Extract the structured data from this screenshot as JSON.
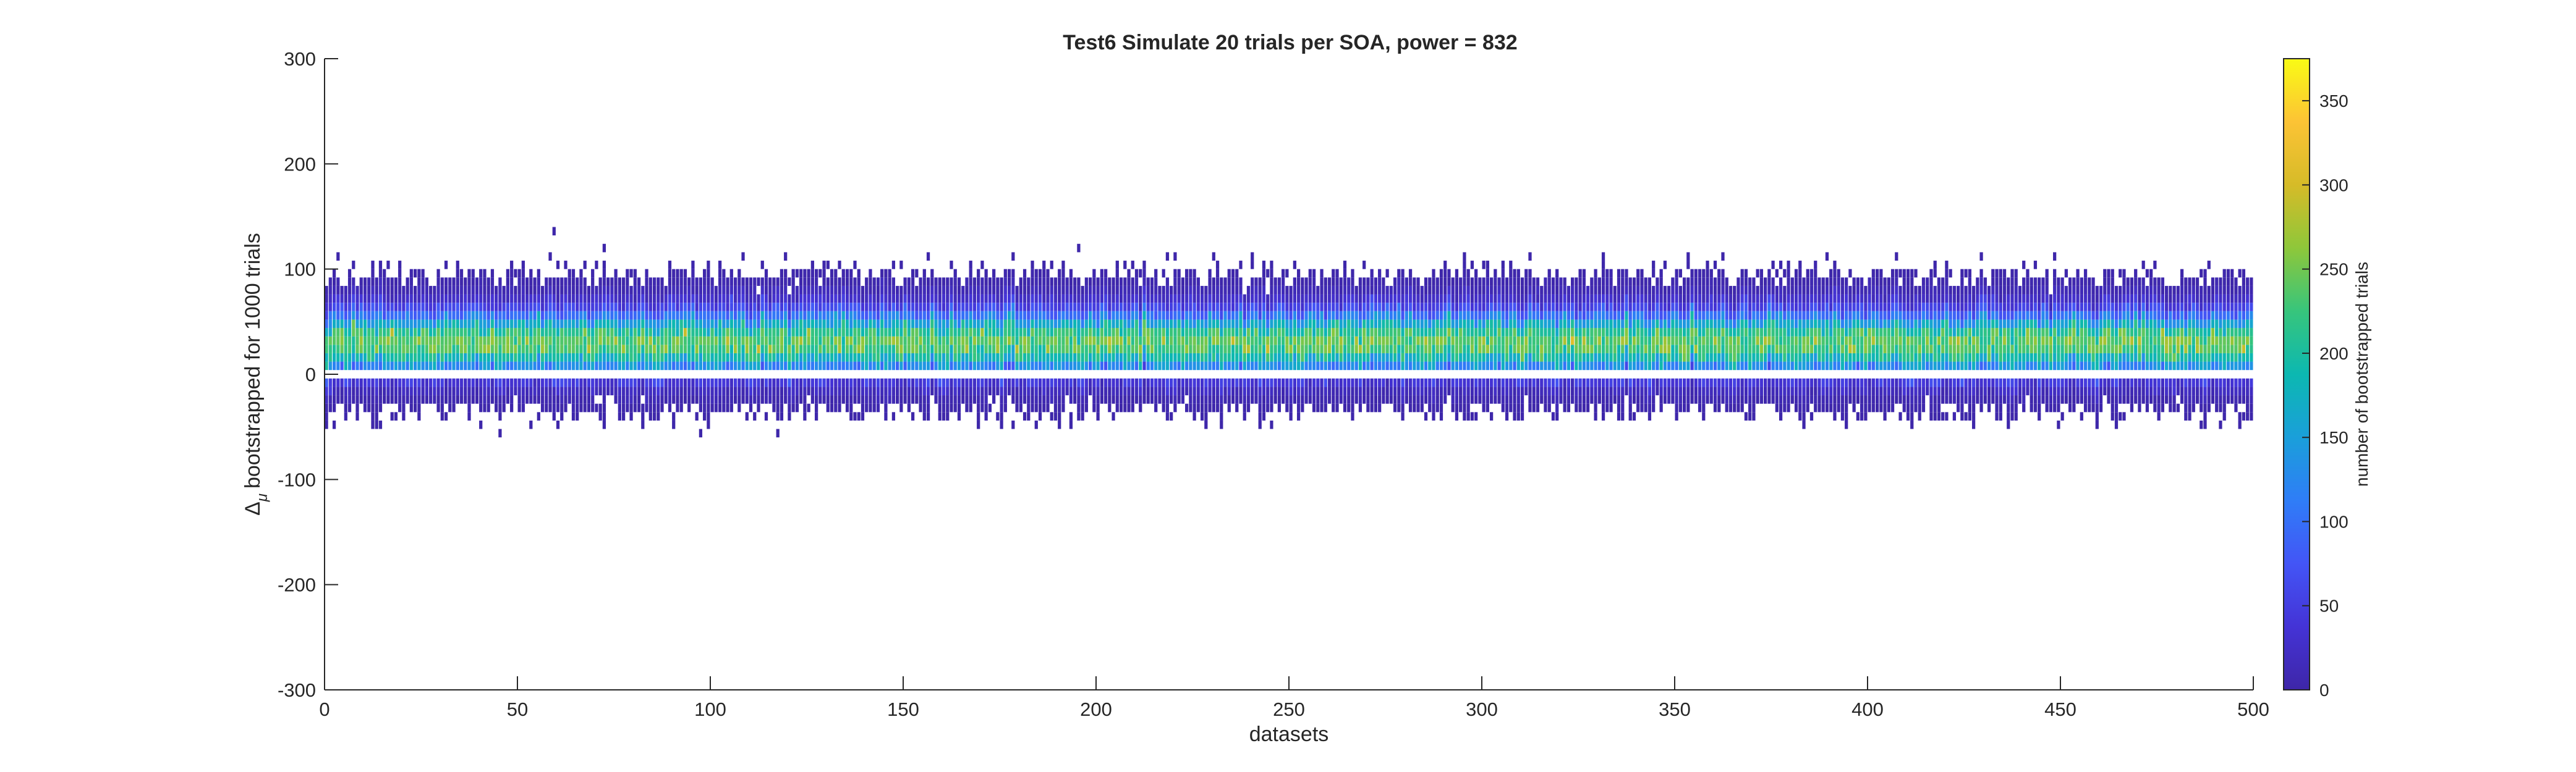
{
  "figure": {
    "title": "Test6 Simulate 20 trials per SOA, power = 832"
  },
  "chart_data": {
    "type": "heatmap",
    "title": "Test6 Simulate 20 trials per SOA, power = 832",
    "xlabel": "datasets",
    "ylabel": "bootstrapped for 1000 trials",
    "ylabel_symbol": "Δ",
    "ylabel_subscript": "μ",
    "xlim": [
      0,
      500
    ],
    "ylim": [
      -300,
      300
    ],
    "x_ticks": [
      0,
      50,
      100,
      150,
      200,
      250,
      300,
      350,
      400,
      450,
      500
    ],
    "y_ticks": [
      300,
      200,
      100,
      0,
      -100,
      -200,
      -300
    ],
    "grid": false,
    "n_datasets": 500,
    "per_dataset_distribution": {
      "typical_center": 30,
      "typical_range": [
        -20,
        80
      ],
      "max_extreme": 98,
      "min_extreme": -52,
      "zero_line_gap": true
    },
    "colorbar": {
      "label": "number of bootstrapped trials",
      "ticks": [
        0,
        50,
        100,
        150,
        200,
        250,
        300,
        350
      ],
      "range": [
        0,
        375
      ],
      "colormap": [
        "#3e26a8",
        "#4433d6",
        "#4355f6",
        "#2f7df7",
        "#1a9fda",
        "#0cb8b1",
        "#37c57c",
        "#8ec73a",
        "#d6bb28",
        "#fcc335",
        "#f9fb15"
      ]
    }
  }
}
